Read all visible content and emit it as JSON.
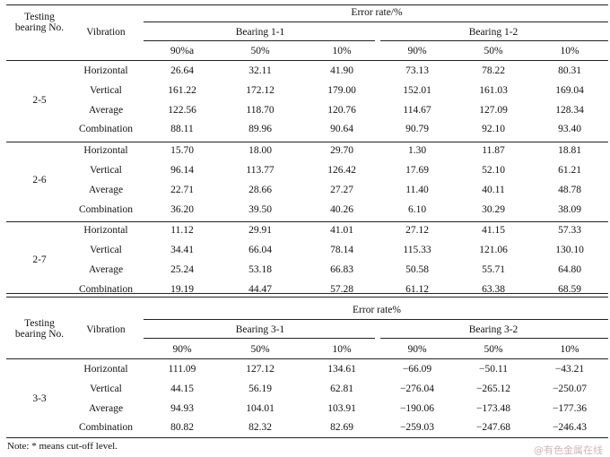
{
  "tables": [
    {
      "testing_header": "Testing bearing No.",
      "vibration_header": "Vibration",
      "error_header": "Error rate/%",
      "group_a": "Bearing 1-1",
      "group_b": "Bearing 1-2",
      "levels": [
        "90%a",
        "50%",
        "10%",
        "90%",
        "50%",
        "10%"
      ],
      "blocks": [
        {
          "bearing": "2-5",
          "rows": [
            {
              "vibration": "Horizontal",
              "values": [
                "26.64",
                "32.11",
                "41.90",
                "73.13",
                "78.22",
                "80.31"
              ]
            },
            {
              "vibration": "Vertical",
              "values": [
                "161.22",
                "172.12",
                "179.00",
                "152.01",
                "161.03",
                "169.04"
              ]
            },
            {
              "vibration": "Average",
              "values": [
                "122.56",
                "118.70",
                "120.76",
                "114.67",
                "127.09",
                "128.34"
              ]
            },
            {
              "vibration": "Combination",
              "values": [
                "88.11",
                "89.96",
                "90.64",
                "90.79",
                "92.10",
                "93.40"
              ]
            }
          ]
        },
        {
          "bearing": "2-6",
          "rows": [
            {
              "vibration": "Horizontal",
              "values": [
                "15.70",
                "18.00",
                "29.70",
                "1.30",
                "11.87",
                "18.81"
              ]
            },
            {
              "vibration": "Vertical",
              "values": [
                "96.14",
                "113.77",
                "126.42",
                "17.69",
                "52.10",
                "61.21"
              ]
            },
            {
              "vibration": "Average",
              "values": [
                "22.71",
                "28.66",
                "27.27",
                "11.40",
                "40.11",
                "48.78"
              ]
            },
            {
              "vibration": "Combination",
              "values": [
                "36.20",
                "39.50",
                "40.26",
                "6.10",
                "30.29",
                "38.09"
              ]
            }
          ]
        },
        {
          "bearing": "2-7",
          "rows": [
            {
              "vibration": "Horizontal",
              "values": [
                "11.12",
                "29.91",
                "41.01",
                "27.12",
                "41.15",
                "57.33"
              ]
            },
            {
              "vibration": "Vertical",
              "values": [
                "34.41",
                "66.04",
                "78.14",
                "115.33",
                "121.06",
                "130.10"
              ]
            },
            {
              "vibration": "Average",
              "values": [
                "25.24",
                "53.18",
                "66.83",
                "50.58",
                "55.71",
                "64.80"
              ]
            },
            {
              "vibration": "Combination",
              "values": [
                "19.19",
                "44.47",
                "57.28",
                "61.12",
                "63.38",
                "68.59"
              ]
            }
          ]
        }
      ]
    },
    {
      "testing_header": "Testing bearing No.",
      "vibration_header": "Vibration",
      "error_header": "Error rate%",
      "group_a": "Bearing 3-1",
      "group_b": "Bearing 3-2",
      "levels": [
        "90%",
        "50%",
        "10%",
        "90%",
        "50%",
        "10%"
      ],
      "blocks": [
        {
          "bearing": "3-3",
          "rows": [
            {
              "vibration": "Horizontal",
              "values": [
                "111.09",
                "127.12",
                "134.61",
                "−66.09",
                "−50.11",
                "−43.21"
              ]
            },
            {
              "vibration": "Vertical",
              "values": [
                "44.15",
                "56.19",
                "62.81",
                "−276.04",
                "−265.12",
                "−250.07"
              ]
            },
            {
              "vibration": "Average",
              "values": [
                "94.93",
                "104.01",
                "103.91",
                "−190.06",
                "−173.48",
                "−177.36"
              ]
            },
            {
              "vibration": "Combination",
              "values": [
                "80.82",
                "82.32",
                "82.69",
                "−259.03",
                "−247.68",
                "−246.43"
              ]
            }
          ]
        }
      ]
    }
  ],
  "note": "Note: * means cut-off level.",
  "watermark": "@有色金属在线"
}
